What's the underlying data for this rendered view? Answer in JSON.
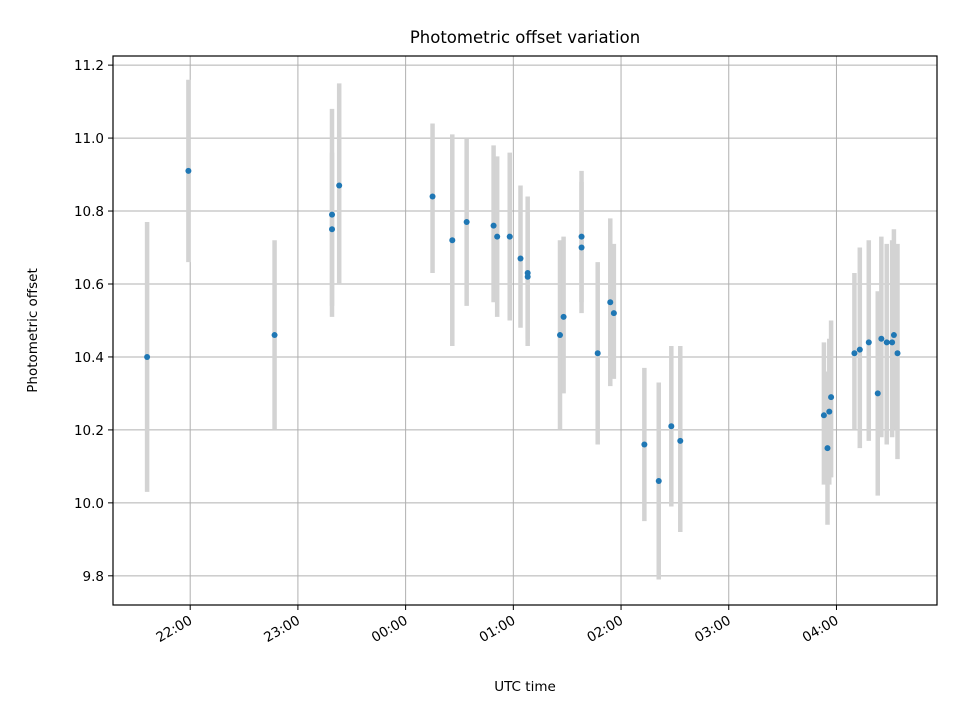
{
  "chart_data": {
    "type": "scatter",
    "title": "Photometric offset variation",
    "xlabel": "UTC time",
    "ylabel": "Photometric offset",
    "x_is_time": true,
    "xlim": [
      "21:17",
      "04:56"
    ],
    "ylim": [
      9.72,
      11.225
    ],
    "x_ticks": [
      "22:00",
      "23:00",
      "00:00",
      "01:00",
      "02:00",
      "03:00",
      "04:00"
    ],
    "y_ticks": [
      "9.8",
      "10.0",
      "10.2",
      "10.4",
      "10.6",
      "10.8",
      "11.0",
      "11.2"
    ],
    "grid": true,
    "marker_color": "#1f77b4",
    "errorbar_color": "#d3d3d3",
    "points": [
      {
        "t": "21:36",
        "y": 10.4,
        "lo": 10.03,
        "hi": 10.77
      },
      {
        "t": "21:59",
        "y": 10.91,
        "lo": 10.66,
        "hi": 11.16
      },
      {
        "t": "22:47",
        "y": 10.46,
        "lo": 10.2,
        "hi": 10.72
      },
      {
        "t": "23:19",
        "y": 10.75,
        "lo": 10.54,
        "hi": 10.96
      },
      {
        "t": "23:19",
        "y": 10.79,
        "lo": 10.51,
        "hi": 11.08
      },
      {
        "t": "23:23",
        "y": 10.87,
        "lo": 10.6,
        "hi": 11.15
      },
      {
        "t": "00:15",
        "y": 10.84,
        "lo": 10.63,
        "hi": 11.04
      },
      {
        "t": "00:26",
        "y": 10.72,
        "lo": 10.43,
        "hi": 11.01
      },
      {
        "t": "00:34",
        "y": 10.77,
        "lo": 10.54,
        "hi": 11.0
      },
      {
        "t": "00:49",
        "y": 10.76,
        "lo": 10.55,
        "hi": 10.98
      },
      {
        "t": "00:51",
        "y": 10.73,
        "lo": 10.51,
        "hi": 10.95
      },
      {
        "t": "00:58",
        "y": 10.73,
        "lo": 10.5,
        "hi": 10.96
      },
      {
        "t": "01:04",
        "y": 10.67,
        "lo": 10.48,
        "hi": 10.87
      },
      {
        "t": "01:08",
        "y": 10.63,
        "lo": 10.43,
        "hi": 10.84
      },
      {
        "t": "01:08",
        "y": 10.62,
        "lo": 10.45,
        "hi": 10.79
      },
      {
        "t": "01:26",
        "y": 10.46,
        "lo": 10.2,
        "hi": 10.72
      },
      {
        "t": "01:28",
        "y": 10.51,
        "lo": 10.3,
        "hi": 10.73
      },
      {
        "t": "01:38",
        "y": 10.73,
        "lo": 10.55,
        "hi": 10.91
      },
      {
        "t": "01:38",
        "y": 10.7,
        "lo": 10.52,
        "hi": 10.88
      },
      {
        "t": "01:47",
        "y": 10.41,
        "lo": 10.16,
        "hi": 10.66
      },
      {
        "t": "01:54",
        "y": 10.55,
        "lo": 10.32,
        "hi": 10.78
      },
      {
        "t": "01:56",
        "y": 10.52,
        "lo": 10.34,
        "hi": 10.71
      },
      {
        "t": "02:13",
        "y": 10.16,
        "lo": 9.95,
        "hi": 10.37
      },
      {
        "t": "02:21",
        "y": 10.06,
        "lo": 9.79,
        "hi": 10.33
      },
      {
        "t": "02:28",
        "y": 10.21,
        "lo": 9.99,
        "hi": 10.43
      },
      {
        "t": "02:33",
        "y": 10.17,
        "lo": 9.92,
        "hi": 10.43
      },
      {
        "t": "03:53",
        "y": 10.24,
        "lo": 10.05,
        "hi": 10.44
      },
      {
        "t": "03:55",
        "y": 10.15,
        "lo": 9.94,
        "hi": 10.36
      },
      {
        "t": "03:56",
        "y": 10.25,
        "lo": 10.05,
        "hi": 10.45
      },
      {
        "t": "03:57",
        "y": 10.29,
        "lo": 10.07,
        "hi": 10.5
      },
      {
        "t": "04:10",
        "y": 10.41,
        "lo": 10.2,
        "hi": 10.63
      },
      {
        "t": "04:13",
        "y": 10.42,
        "lo": 10.15,
        "hi": 10.7
      },
      {
        "t": "04:18",
        "y": 10.44,
        "lo": 10.17,
        "hi": 10.72
      },
      {
        "t": "04:23",
        "y": 10.3,
        "lo": 10.02,
        "hi": 10.58
      },
      {
        "t": "04:25",
        "y": 10.45,
        "lo": 10.18,
        "hi": 10.73
      },
      {
        "t": "04:28",
        "y": 10.44,
        "lo": 10.16,
        "hi": 10.71
      },
      {
        "t": "04:31",
        "y": 10.44,
        "lo": 10.18,
        "hi": 10.72
      },
      {
        "t": "04:32",
        "y": 10.46,
        "lo": 10.2,
        "hi": 10.75
      },
      {
        "t": "04:34",
        "y": 10.41,
        "lo": 10.12,
        "hi": 10.71
      }
    ]
  }
}
